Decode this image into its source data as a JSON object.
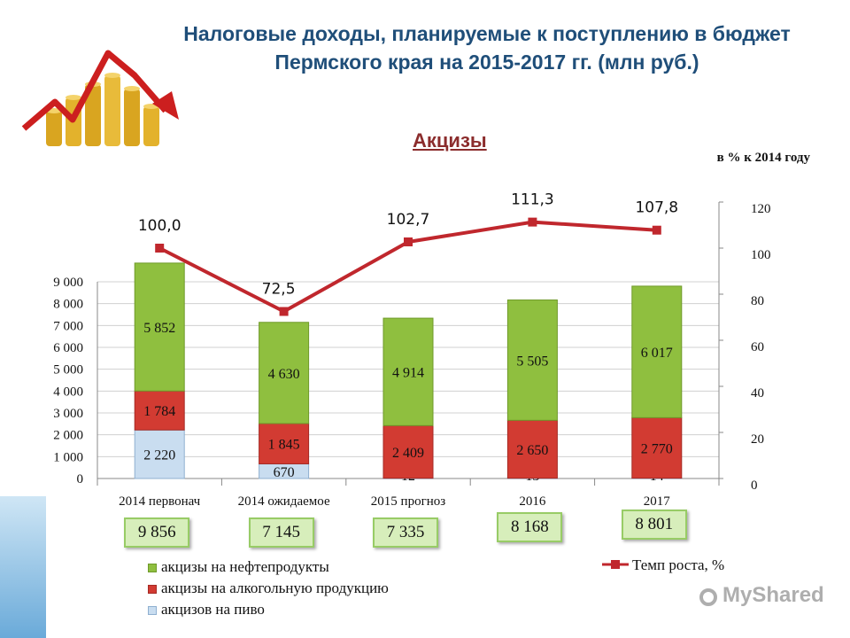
{
  "title_line1": "Налоговые доходы, планируемые к поступлению в бюджет",
  "title_line2": "Пермского края на 2015-2017 гг. (млн руб.)",
  "subtitle": "Акцизы",
  "pct_axis_note": "в % к 2014 году",
  "watermark": "MyShared",
  "legend": {
    "oil": "акцизы на нефтепродукты",
    "alcohol": "акцизы на алкогольную продукцию",
    "beer": "акцизов на пиво",
    "growth": "Темп роста, %"
  },
  "totals": [
    "9 856",
    "7 145",
    "7 335",
    "8 168",
    "8 801"
  ],
  "colors": {
    "oil": "#8fbf3f",
    "alcohol": "#d23b32",
    "beer": "#c9ddf0",
    "line": "#c0272d",
    "title": "#1f4e79",
    "subtitle": "#8b2c2c"
  },
  "chart_data": {
    "type": "bar",
    "stacked": true,
    "categories": [
      "2014 первонач",
      "2014 ожидаемое",
      "2015 прогноз",
      "2016",
      "2017"
    ],
    "ylim": [
      0,
      9000
    ],
    "yticks": [
      "0",
      "1 000",
      "2 000",
      "3 000",
      "4 000",
      "5 000",
      "6 000",
      "7 000",
      "8 000",
      "9 000"
    ],
    "y2lim": [
      0,
      120
    ],
    "y2ticks": [
      "0",
      "20",
      "40",
      "60",
      "80",
      "100",
      "120"
    ],
    "series": [
      {
        "name": "акцизов на пиво",
        "values": [
          2220,
          670,
          12,
          13,
          14
        ],
        "labels": [
          "2 220",
          "670",
          "12",
          "13",
          "14"
        ]
      },
      {
        "name": "акцизы на алкогольную продукцию",
        "values": [
          1784,
          1845,
          2409,
          2650,
          2770
        ],
        "labels": [
          "1 784",
          "1 845",
          "2 409",
          "2 650",
          "2 770"
        ]
      },
      {
        "name": "акцизы на нефтепродукты",
        "values": [
          5852,
          4630,
          4914,
          5505,
          6017
        ],
        "labels": [
          "5 852",
          "4 630",
          "4 914",
          "5 505",
          "6 017"
        ]
      }
    ],
    "line": {
      "name": "Темп роста, %",
      "axis": "secondary",
      "values": [
        100.0,
        72.5,
        102.7,
        111.3,
        107.8
      ],
      "labels": [
        "100,0",
        "72,5",
        "102,7",
        "111,3",
        "107,8"
      ]
    }
  }
}
